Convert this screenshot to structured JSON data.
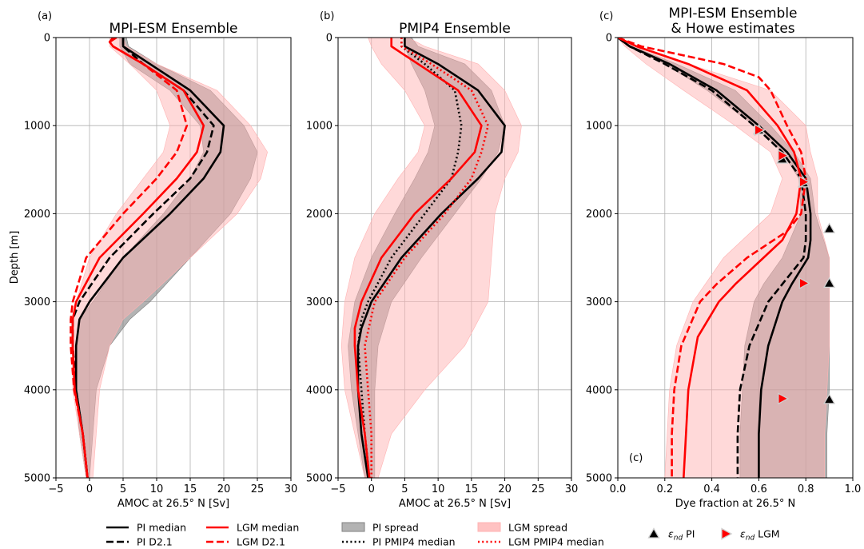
{
  "figure": {
    "y_axis_label": "Depth [m]",
    "legend": [
      {
        "label": "PI median",
        "style": "black-solid"
      },
      {
        "label": "PI D2.1",
        "style": "black-dashed"
      },
      {
        "label": "LGM median",
        "style": "red-solid"
      },
      {
        "label": "LGM D2.1",
        "style": "red-dashed"
      },
      {
        "label": "PI spread",
        "style": "grey-fill"
      },
      {
        "label": "PI PMIP4 median",
        "style": "black-dotted"
      },
      {
        "label": "LGM spread",
        "style": "pink-fill"
      },
      {
        "label": "LGM PMIP4 median",
        "style": "red-dotted"
      },
      {
        "label": "εnd PI",
        "style": "black-triangle-up"
      },
      {
        "label": "εnd LGM",
        "style": "red-triangle-right"
      }
    ]
  },
  "colors": {
    "pi": "#000000",
    "lgm": "#ff0000",
    "pi_spread": "#808080",
    "lgm_spread": "#ffb3b3"
  },
  "chart_data": [
    {
      "type": "line",
      "panel_letter": "(a)",
      "title": "MPI-ESM Ensemble",
      "xlabel": "AMOC at 26.5° N [Sv]",
      "ylabel": "Depth [m]",
      "xlim": [
        -5,
        30
      ],
      "ylim": [
        5000,
        0
      ],
      "x_ticks": [
        -5,
        0,
        5,
        10,
        15,
        20,
        25,
        30
      ],
      "y_ticks": [
        0,
        1000,
        2000,
        3000,
        4000,
        5000
      ],
      "grid": true,
      "bands": [
        {
          "name": "PI spread",
          "color": "#808080",
          "depth": [
            0,
            100,
            300,
            600,
            1000,
            1300,
            1600,
            2000,
            2500,
            3000,
            3200,
            3500,
            4000,
            4500,
            5000
          ],
          "lo": [
            4.5,
            4.5,
            6,
            12,
            16.5,
            17,
            15,
            11,
            5,
            0.5,
            -1.5,
            -2,
            -2,
            -1.5,
            -0.5
          ],
          "hi": [
            5.5,
            5.8,
            10,
            18,
            23,
            25,
            24,
            21,
            15,
            9,
            6,
            3,
            1,
            0.5,
            0
          ]
        },
        {
          "name": "LGM spread",
          "color": "#ffb3b3",
          "depth": [
            0,
            100,
            300,
            600,
            1000,
            1300,
            1600,
            2000,
            2500,
            3000,
            3200,
            3500,
            4000,
            4500,
            5000
          ],
          "lo": [
            3,
            3,
            6,
            10,
            12,
            11,
            8,
            4,
            0,
            -2,
            -2.5,
            -2.5,
            -2.5,
            -1.5,
            -0.5
          ],
          "hi": [
            5,
            5.5,
            10,
            19,
            24,
            26.5,
            25.5,
            22,
            15,
            8,
            5,
            3,
            1.5,
            1,
            0.5
          ]
        }
      ],
      "series": [
        {
          "name": "PI median",
          "color": "#000000",
          "dash": "solid",
          "depth": [
            0,
            100,
            300,
            600,
            1000,
            1300,
            1600,
            2000,
            2500,
            3000,
            3200,
            3500,
            4000,
            4500,
            5000
          ],
          "values": [
            5,
            5,
            9,
            15,
            20,
            19.5,
            17,
            12,
            5,
            0,
            -1.5,
            -2,
            -2,
            -1,
            -0.3
          ]
        },
        {
          "name": "PI D2.1",
          "color": "#000000",
          "dash": "dashed",
          "depth": [
            0,
            100,
            300,
            600,
            1000,
            1300,
            1600,
            2000,
            2500,
            3000,
            3200,
            3500,
            4000,
            4500,
            5000
          ],
          "values": [
            5,
            5,
            8,
            14,
            18.5,
            17.5,
            15,
            9.5,
            3,
            -1.5,
            -2.5,
            -2.5,
            -2,
            -1,
            -0.3
          ]
        },
        {
          "name": "LGM median",
          "color": "#ff0000",
          "dash": "solid",
          "depth": [
            0,
            50,
            100,
            300,
            600,
            1000,
            1300,
            1600,
            2000,
            2500,
            3000,
            3200,
            3500,
            4000,
            4500,
            5000
          ],
          "values": [
            4,
            3,
            3.5,
            8,
            14,
            17,
            16,
            13,
            8,
            1.5,
            -2,
            -2.5,
            -2.5,
            -2.2,
            -1,
            -0.3
          ]
        },
        {
          "name": "LGM D2.1",
          "color": "#ff0000",
          "dash": "dashed",
          "depth": [
            0,
            50,
            100,
            300,
            600,
            1000,
            1300,
            1600,
            2000,
            2500,
            3000,
            3200,
            3500,
            4000,
            4500,
            5000
          ],
          "values": [
            3.5,
            3,
            3.5,
            8,
            13,
            14.5,
            13,
            10,
            5,
            -0.5,
            -2.5,
            -2.8,
            -2.8,
            -2.3,
            -1,
            -0.3
          ]
        }
      ],
      "markers": []
    },
    {
      "type": "line",
      "panel_letter": "(b)",
      "title": "PMIP4 Ensemble",
      "xlabel": "AMOC at 26.5° N [Sv]",
      "xlim": [
        -5,
        30
      ],
      "ylim": [
        5000,
        0
      ],
      "x_ticks": [
        -5,
        0,
        5,
        10,
        15,
        20,
        25,
        30
      ],
      "y_ticks": [
        0,
        1000,
        2000,
        3000,
        4000,
        5000
      ],
      "grid": true,
      "bands": [
        {
          "name": "PI spread",
          "color": "#808080",
          "depth": [
            0,
            100,
            300,
            600,
            1000,
            1300,
            1600,
            2000,
            2500,
            3000,
            3500,
            4000,
            4500,
            5000
          ],
          "lo": [
            5,
            5,
            6,
            8,
            9.5,
            8.5,
            6.5,
            3.5,
            0,
            -2.5,
            -3.5,
            -3,
            -2,
            -1
          ],
          "hi": [
            6,
            7,
            14,
            18,
            20,
            19,
            16.5,
            12.5,
            7.5,
            3,
            1,
            0.5,
            0.5,
            0.5
          ]
        },
        {
          "name": "LGM spread",
          "color": "#ffb3b3",
          "depth": [
            0,
            100,
            300,
            600,
            1000,
            1300,
            1600,
            2000,
            2500,
            3000,
            3500,
            4000,
            4500,
            5000
          ],
          "lo": [
            -0.5,
            0,
            1.5,
            5,
            8,
            7,
            4,
            0.5,
            -2.5,
            -4,
            -4.5,
            -4,
            -2.5,
            -1
          ],
          "hi": [
            5.5,
            8,
            16,
            20,
            22.5,
            22,
            20,
            18.5,
            18,
            17.5,
            14,
            8,
            3,
            1
          ]
        }
      ],
      "series": [
        {
          "name": "PI median",
          "color": "#000000",
          "dash": "solid",
          "depth": [
            0,
            100,
            300,
            600,
            1000,
            1300,
            1600,
            2000,
            2500,
            3000,
            3300,
            3500,
            4000,
            4500,
            5000
          ],
          "values": [
            5,
            5,
            10,
            16,
            20,
            19.5,
            16,
            10.5,
            4.5,
            0,
            -1.5,
            -2,
            -2,
            -1.5,
            -0.5
          ]
        },
        {
          "name": "PI PMIP4 median",
          "color": "#000000",
          "dash": "dotted",
          "depth": [
            0,
            100,
            300,
            600,
            1000,
            1300,
            1600,
            2000,
            2500,
            3000,
            3200,
            3500,
            4000,
            4500,
            5000
          ],
          "values": [
            4.5,
            4.5,
            8,
            12.5,
            13.5,
            13,
            12,
            8,
            3,
            -0.5,
            -1.5,
            -2,
            -1.5,
            -1,
            -0.3
          ]
        },
        {
          "name": "LGM median",
          "color": "#ff0000",
          "dash": "solid",
          "depth": [
            0,
            100,
            300,
            600,
            1000,
            1300,
            1600,
            2000,
            2500,
            3000,
            3300,
            3500,
            4000,
            4500,
            5000
          ],
          "values": [
            3,
            3,
            7,
            13,
            16.5,
            15.5,
            12,
            6.5,
            1.5,
            -1.5,
            -2.5,
            -2.5,
            -2,
            -1,
            -0.3
          ]
        },
        {
          "name": "LGM PMIP4 median",
          "color": "#ff0000",
          "dash": "dotted",
          "depth": [
            0,
            100,
            300,
            600,
            1000,
            1300,
            1600,
            2000,
            2500,
            3000,
            3500,
            4000,
            4500,
            5000
          ],
          "values": [
            4.5,
            4.5,
            9,
            15,
            17.5,
            16.5,
            15,
            11,
            5,
            0.5,
            -1,
            -0.5,
            0,
            0
          ]
        }
      ],
      "markers": []
    },
    {
      "type": "line",
      "panel_letter": "(c)",
      "title": "MPI-ESM Ensemble",
      "title_line2": "& Howe estimates",
      "inner_label": "(c)",
      "xlabel": "Dye fraction at 26.5° N",
      "xlim": [
        0,
        1
      ],
      "ylim": [
        5000,
        0
      ],
      "x_ticks": [
        0.0,
        0.2,
        0.4,
        0.6,
        0.8,
        1.0
      ],
      "x_tick_labels": [
        "0.0",
        "0.2",
        "0.4",
        "0.6",
        "0.8",
        "1.0"
      ],
      "y_ticks": [
        0,
        1000,
        2000,
        3000,
        4000,
        5000
      ],
      "grid": true,
      "bands": [
        {
          "name": "PI spread",
          "color": "#808080",
          "depth": [
            0,
            100,
            300,
            600,
            1000,
            1300,
            1600,
            2000,
            2500,
            2800,
            3000,
            3500,
            4000,
            4500,
            5000
          ],
          "lo": [
            0,
            0.05,
            0.2,
            0.38,
            0.58,
            0.7,
            0.77,
            0.78,
            0.7,
            0.62,
            0.58,
            0.54,
            0.53,
            0.52,
            0.52
          ],
          "hi": [
            0,
            0.06,
            0.25,
            0.5,
            0.65,
            0.75,
            0.82,
            0.84,
            0.9,
            0.9,
            0.9,
            0.9,
            0.9,
            0.89,
            0.89
          ]
        },
        {
          "name": "LGM spread",
          "color": "#ffb3b3",
          "depth": [
            0,
            100,
            300,
            600,
            1000,
            1300,
            1600,
            2000,
            2500,
            3000,
            3500,
            4000,
            4500,
            5000
          ],
          "lo": [
            0,
            0.03,
            0.12,
            0.28,
            0.5,
            0.65,
            0.7,
            0.65,
            0.45,
            0.32,
            0.25,
            0.22,
            0.21,
            0.2
          ],
          "hi": [
            0,
            0.07,
            0.3,
            0.65,
            0.8,
            0.82,
            0.85,
            0.85,
            0.9,
            0.9,
            0.9,
            0.89,
            0.88,
            0.88
          ]
        }
      ],
      "series": [
        {
          "name": "PI median",
          "color": "#000000",
          "dash": "solid",
          "depth": [
            0,
            100,
            300,
            600,
            1000,
            1300,
            1600,
            2000,
            2300,
            2500,
            2800,
            3000,
            3500,
            4000,
            4500,
            5000
          ],
          "values": [
            0,
            0.05,
            0.22,
            0.42,
            0.6,
            0.72,
            0.8,
            0.82,
            0.82,
            0.81,
            0.74,
            0.7,
            0.64,
            0.61,
            0.6,
            0.6
          ]
        },
        {
          "name": "PI D2.1",
          "color": "#000000",
          "dash": "dashed",
          "depth": [
            0,
            100,
            300,
            600,
            1000,
            1300,
            1600,
            2000,
            2300,
            2500,
            2800,
            3000,
            3500,
            4000,
            4500,
            5000
          ],
          "values": [
            0,
            0.05,
            0.2,
            0.4,
            0.58,
            0.7,
            0.78,
            0.8,
            0.8,
            0.79,
            0.7,
            0.64,
            0.56,
            0.52,
            0.51,
            0.51
          ]
        },
        {
          "name": "LGM median",
          "color": "#ff0000",
          "dash": "solid",
          "depth": [
            0,
            100,
            300,
            600,
            1000,
            1300,
            1600,
            2000,
            2300,
            2500,
            2800,
            3000,
            3400,
            4000,
            4500,
            5000
          ],
          "values": [
            0,
            0.08,
            0.3,
            0.55,
            0.68,
            0.75,
            0.78,
            0.76,
            0.7,
            0.62,
            0.5,
            0.43,
            0.34,
            0.3,
            0.29,
            0.28
          ]
        },
        {
          "name": "LGM D2.1",
          "color": "#ff0000",
          "dash": "dashed",
          "depth": [
            0,
            100,
            300,
            450,
            600,
            1000,
            1300,
            1600,
            2000,
            2200,
            2500,
            2800,
            3000,
            3500,
            4000,
            4500,
            5000
          ],
          "values": [
            0,
            0.1,
            0.45,
            0.6,
            0.65,
            0.72,
            0.78,
            0.8,
            0.78,
            0.72,
            0.55,
            0.42,
            0.35,
            0.27,
            0.24,
            0.23,
            0.23
          ]
        }
      ],
      "markers": [
        {
          "name": "εnd PI",
          "shape": "triangle-up",
          "color": "#000000",
          "points": [
            [
              0.6,
              1050
            ],
            [
              0.7,
              1380
            ],
            [
              0.79,
              1650
            ],
            [
              0.9,
              2170
            ],
            [
              0.9,
              2790
            ],
            [
              0.9,
              4110
            ]
          ]
        },
        {
          "name": "εnd LGM",
          "shape": "triangle-right",
          "color": "#ff0000",
          "points": [
            [
              0.6,
              1050
            ],
            [
              0.7,
              1340
            ],
            [
              0.79,
              1640
            ],
            [
              0.79,
              2790
            ],
            [
              0.7,
              4100
            ]
          ]
        }
      ]
    }
  ]
}
